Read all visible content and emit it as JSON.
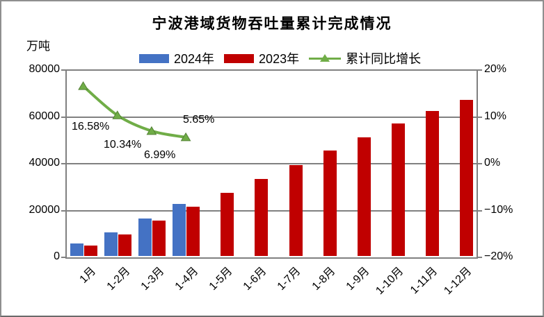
{
  "chart_data": {
    "type": "bar",
    "combo": "bar+line",
    "title": "宁波港域货物吞吐量累计完成情况",
    "categories": [
      "1月",
      "1-2月",
      "1-3月",
      "1-4月",
      "1-5月",
      "1-6月",
      "1-7月",
      "1-8月",
      "1-9月",
      "1-10月",
      "1-11月",
      "1-12月"
    ],
    "series": [
      {
        "id": "2024",
        "name": "2024年",
        "type": "bar",
        "axis": "left",
        "color": "#4472C4",
        "values": [
          6000,
          10740,
          16680,
          22800
        ]
      },
      {
        "id": "2023",
        "name": "2023年",
        "type": "bar",
        "axis": "left",
        "color": "#C00000",
        "values": [
          5150,
          9730,
          15590,
          21580,
          27700,
          33600,
          39500,
          45500,
          51300,
          57300,
          62400,
          67400
        ]
      },
      {
        "id": "growth",
        "name": "累计同比增长",
        "type": "line",
        "axis": "right",
        "color": "#70AD47",
        "marker": "triangle-up",
        "values": [
          16.58,
          10.34,
          6.99,
          5.65
        ],
        "data_labels": [
          "16.58%",
          "10.34%",
          "6.99%",
          "5.65%"
        ]
      }
    ],
    "left_axis": {
      "unit": "万吨",
      "min": 0,
      "max": 80000,
      "ticks": [
        "80000",
        "60000",
        "40000",
        "20000",
        "0"
      ]
    },
    "right_axis": {
      "min": -20,
      "max": 20,
      "ticks": [
        "20%",
        "10%",
        "0%",
        "−10%",
        "−20%"
      ]
    },
    "legend_position": "top",
    "grid": true
  },
  "legend": {
    "items": [
      {
        "label": "2024年",
        "color": "#4472C4",
        "marker": "rect"
      },
      {
        "label": "2023年",
        "color": "#C00000",
        "marker": "rect"
      },
      {
        "label": "累计同比增长",
        "color": "#70AD47",
        "marker": "line-triangle"
      }
    ]
  },
  "colors": {
    "grid": "#808080",
    "bar_2024": "#4472C4",
    "bar_2023": "#C00000",
    "growth_line": "#70AD47"
  }
}
